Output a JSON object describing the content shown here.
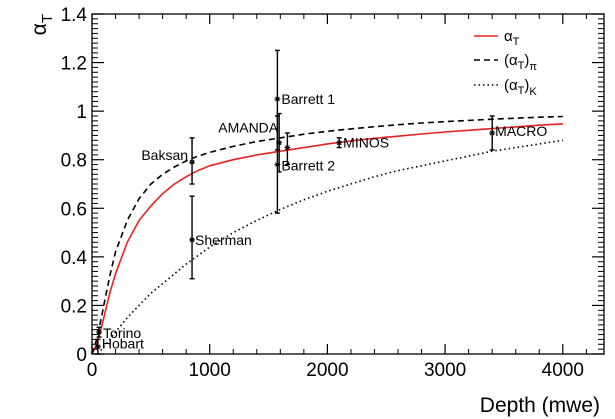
{
  "chart_data": {
    "type": "scatter",
    "xlabel": "Depth (mwe)",
    "ylabel": "α",
    "ylabel_sub": "T",
    "xlim": [
      0,
      4350
    ],
    "ylim": [
      0,
      1.4
    ],
    "x_ticks": [
      0,
      1000,
      2000,
      3000,
      4000
    ],
    "x_tick_labels": [
      "0",
      "1000",
      "2000",
      "3000",
      "4000"
    ],
    "y_ticks": [
      0,
      0.2,
      0.4,
      0.6,
      0.8,
      1.0,
      1.2,
      1.4
    ],
    "y_tick_labels": [
      "0",
      "0.2",
      "0.4",
      "0.6",
      "0.8",
      "1",
      "1.2",
      "1.4"
    ],
    "grid": false,
    "legend_position": "top-right",
    "legend": [
      {
        "base": "α",
        "sub": "T",
        "sub2": "",
        "style": "solid",
        "color": "#e8231f"
      },
      {
        "base": "(α",
        "sub": "T",
        "close": ")",
        "sub2": "π",
        "style": "dashed",
        "color": "#000000"
      },
      {
        "base": "(α",
        "sub": "T",
        "close": ")",
        "sub2": "K",
        "style": "dotted",
        "color": "#000000"
      }
    ],
    "curves": [
      {
        "style": "solid",
        "color": "#e8231f",
        "x": [
          0,
          40,
          80,
          100,
          150,
          200,
          300,
          400,
          500,
          600,
          700,
          800,
          900,
          1000,
          1200,
          1400,
          1600,
          1800,
          2000,
          2200,
          2400,
          2600,
          2800,
          3000,
          3200,
          3400,
          3600,
          3800,
          4000
        ],
        "y": [
          0.0,
          0.04,
          0.11,
          0.15,
          0.25,
          0.33,
          0.46,
          0.55,
          0.61,
          0.66,
          0.7,
          0.73,
          0.755,
          0.775,
          0.8,
          0.82,
          0.835,
          0.85,
          0.865,
          0.877,
          0.888,
          0.897,
          0.906,
          0.914,
          0.921,
          0.928,
          0.935,
          0.942,
          0.948
        ]
      },
      {
        "style": "dashed",
        "color": "#000000",
        "x": [
          0,
          40,
          80,
          100,
          150,
          200,
          300,
          400,
          500,
          600,
          700,
          800,
          900,
          1000,
          1200,
          1400,
          1600,
          1800,
          2000,
          2200,
          2400,
          2600,
          2800,
          3000,
          3200,
          3400,
          3600,
          3800,
          4000
        ],
        "y": [
          0.0,
          0.06,
          0.15,
          0.2,
          0.32,
          0.42,
          0.55,
          0.64,
          0.7,
          0.74,
          0.77,
          0.795,
          0.815,
          0.83,
          0.855,
          0.875,
          0.89,
          0.905,
          0.917,
          0.927,
          0.936,
          0.944,
          0.951,
          0.957,
          0.962,
          0.967,
          0.971,
          0.975,
          0.978
        ]
      },
      {
        "style": "dotted",
        "color": "#000000",
        "x": [
          50,
          100,
          150,
          200,
          300,
          400,
          500,
          600,
          800,
          1000,
          1200,
          1400,
          1600,
          1800,
          2000,
          2200,
          2400,
          2600,
          2800,
          3000,
          3200,
          3400,
          3600,
          3800,
          4000
        ],
        "y": [
          0.0,
          0.03,
          0.06,
          0.09,
          0.15,
          0.2,
          0.25,
          0.29,
          0.37,
          0.44,
          0.5,
          0.55,
          0.595,
          0.635,
          0.67,
          0.7,
          0.73,
          0.755,
          0.775,
          0.795,
          0.815,
          0.835,
          0.85,
          0.865,
          0.88
        ]
      }
    ],
    "points": [
      {
        "label": "Torino",
        "x": 60,
        "y": 0.09,
        "ylo": 0.07,
        "yhi": 0.11
      },
      {
        "label": "Hobart",
        "x": 50,
        "y": 0.03,
        "ylo": 0.0,
        "yhi": 0.06
      },
      {
        "label": "Baksan",
        "x": 850,
        "y": 0.79,
        "ylo": 0.7,
        "yhi": 0.89
      },
      {
        "label": "Sherman",
        "x": 850,
        "y": 0.47,
        "ylo": 0.31,
        "yhi": 0.65
      },
      {
        "label": "Barrett 1",
        "x": 1575,
        "y": 1.05,
        "ylo": 0.84,
        "yhi": 1.25
      },
      {
        "label": "AMANDA",
        "x": 1590,
        "y": 0.87,
        "ylo": 0.75,
        "yhi": 0.99
      },
      {
        "label": "Barrett 2",
        "x": 1575,
        "y": 0.78,
        "ylo": 0.58,
        "yhi": 0.98
      },
      {
        "label": "",
        "x": 1660,
        "y": 0.85,
        "ylo": 0.78,
        "yhi": 0.91
      },
      {
        "label": "MINOS",
        "x": 2100,
        "y": 0.87,
        "ylo": 0.85,
        "yhi": 0.89
      },
      {
        "label": "MACRO",
        "x": 3400,
        "y": 0.91,
        "ylo": 0.84,
        "yhi": 0.98
      }
    ]
  }
}
